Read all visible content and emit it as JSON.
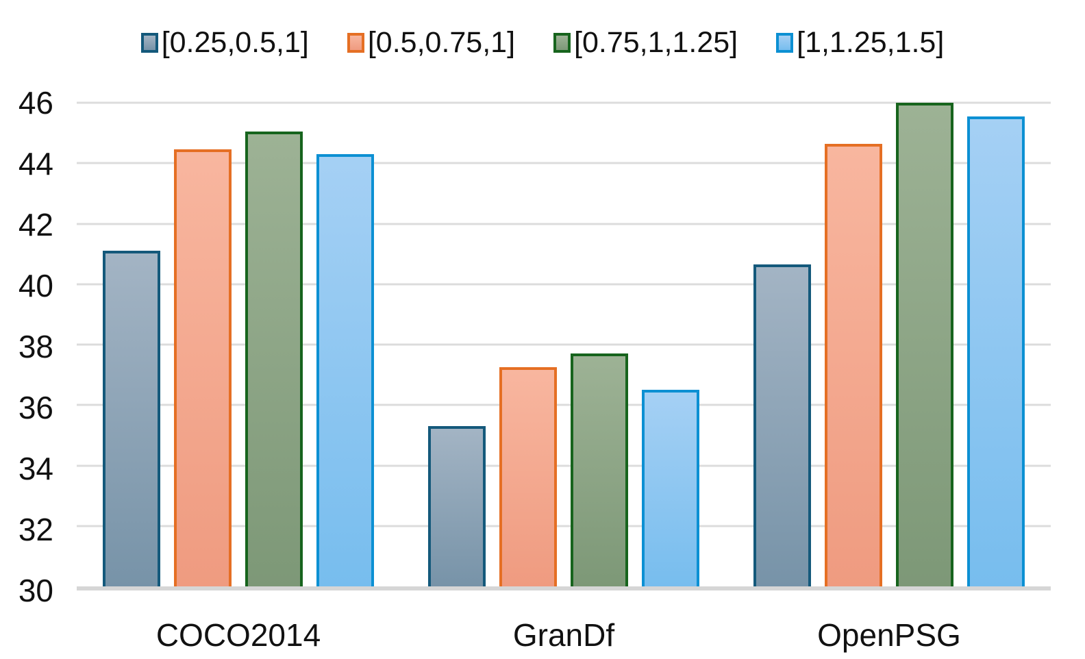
{
  "chart_data": {
    "type": "bar",
    "title": "",
    "xlabel": "",
    "ylabel": "",
    "categories": [
      "COCO2014",
      "GranDf",
      "OpenPSG"
    ],
    "series": [
      {
        "name": "[0.25,0.5,1]",
        "values": [
          41.1,
          35.3,
          40.65
        ],
        "border": "#14597b",
        "fill_top": "#a3b4c4",
        "fill_bottom": "#7793a8"
      },
      {
        "name": "[0.5,0.75,1]",
        "values": [
          44.45,
          37.25,
          44.65
        ],
        "border": "#e56f24",
        "fill_top": "#f8b69f",
        "fill_bottom": "#ef9b80"
      },
      {
        "name": "[0.75,1,1.25]",
        "values": [
          45.05,
          37.7,
          46.0
        ],
        "border": "#17641d",
        "fill_top": "#9db295",
        "fill_bottom": "#7d9877"
      },
      {
        "name": "[1,1.25,1.5]",
        "values": [
          44.3,
          36.5,
          45.55
        ],
        "border": "#0c90d3",
        "fill_top": "#a5d0f4",
        "fill_bottom": "#77bdee"
      }
    ],
    "ylim": [
      30,
      46
    ],
    "ytick_step": 2,
    "ytick_labels": [
      "30",
      "32",
      "34",
      "36",
      "38",
      "40",
      "42",
      "44",
      "46"
    ],
    "grid": true,
    "grid_color": "#dcdcdc",
    "baseline_color": "#d6d6d6",
    "text_color": "#111111",
    "legend_position": "top"
  }
}
